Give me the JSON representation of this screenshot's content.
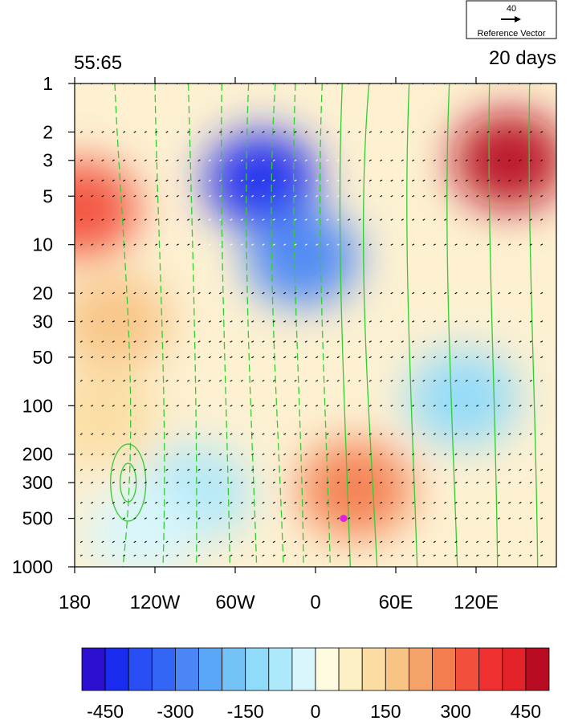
{
  "chart_data": {
    "type": "heatmap",
    "title_left": "55:65",
    "title_right": "20 days",
    "x_ticks": [
      {
        "value": -180,
        "label": "180"
      },
      {
        "value": -120,
        "label": "120W"
      },
      {
        "value": -60,
        "label": "60W"
      },
      {
        "value": 0,
        "label": "0"
      },
      {
        "value": 60,
        "label": "60E"
      },
      {
        "value": 120,
        "label": "120E"
      }
    ],
    "y_ticks": [
      {
        "value": 1,
        "label": "1"
      },
      {
        "value": 2,
        "label": "2"
      },
      {
        "value": 3,
        "label": "3"
      },
      {
        "value": 5,
        "label": "5"
      },
      {
        "value": 10,
        "label": "10"
      },
      {
        "value": 20,
        "label": "20"
      },
      {
        "value": 30,
        "label": "30"
      },
      {
        "value": 50,
        "label": "50"
      },
      {
        "value": 100,
        "label": "100"
      },
      {
        "value": 200,
        "label": "200"
      },
      {
        "value": 300,
        "label": "300"
      },
      {
        "value": 500,
        "label": "500"
      },
      {
        "value": 1000,
        "label": "1000"
      }
    ],
    "xlim": [
      -180,
      180
    ],
    "ylim": [
      1,
      1000
    ],
    "y_scale": "log",
    "y_inverted": true,
    "reference_vector": {
      "magnitude": "40",
      "label": "Reference Vector"
    },
    "colorbar": {
      "levels": [
        -500,
        -450,
        -400,
        -350,
        -300,
        -250,
        -200,
        -150,
        -100,
        -50,
        0,
        50,
        100,
        150,
        200,
        250,
        300,
        350,
        400,
        450,
        500
      ],
      "labeled": [
        {
          "value": -450,
          "label": "-450"
        },
        {
          "value": -300,
          "label": "-300"
        },
        {
          "value": -150,
          "label": "-150"
        },
        {
          "value": 0,
          "label": "0"
        },
        {
          "value": 150,
          "label": "150"
        },
        {
          "value": 300,
          "label": "300"
        },
        {
          "value": 450,
          "label": "450"
        }
      ],
      "colors": [
        "#2a0fd0",
        "#1a2bf0",
        "#2a4ef5",
        "#3466f5",
        "#4a86f5",
        "#5aa6f7",
        "#74c3f7",
        "#90dafa",
        "#aee8fb",
        "#d8f6fc",
        "#fffbe0",
        "#fdf0c4",
        "#fbdca2",
        "#f8c486",
        "#f5a16a",
        "#f47d50",
        "#f24f3c",
        "#ee3030",
        "#e42328",
        "#b80c22"
      ]
    },
    "shaded_blobs": [
      {
        "lon": -40,
        "p": 4,
        "value": -420
      },
      {
        "lon": -10,
        "p": 12,
        "value": -300
      },
      {
        "lon": 145,
        "p": 3,
        "value": 460
      },
      {
        "lon": -175,
        "p": 6,
        "value": 320
      },
      {
        "lon": -150,
        "p": 30,
        "value": 150
      },
      {
        "lon": -160,
        "p": 120,
        "value": 120
      },
      {
        "lon": 30,
        "p": 330,
        "value": 250
      },
      {
        "lon": 110,
        "p": 90,
        "value": -120
      },
      {
        "lon": -90,
        "p": 350,
        "value": -60
      },
      {
        "lon": -130,
        "p": 600,
        "value": -40
      }
    ],
    "marker": {
      "lon": 21,
      "p": 500,
      "color": "#e020e0"
    }
  }
}
